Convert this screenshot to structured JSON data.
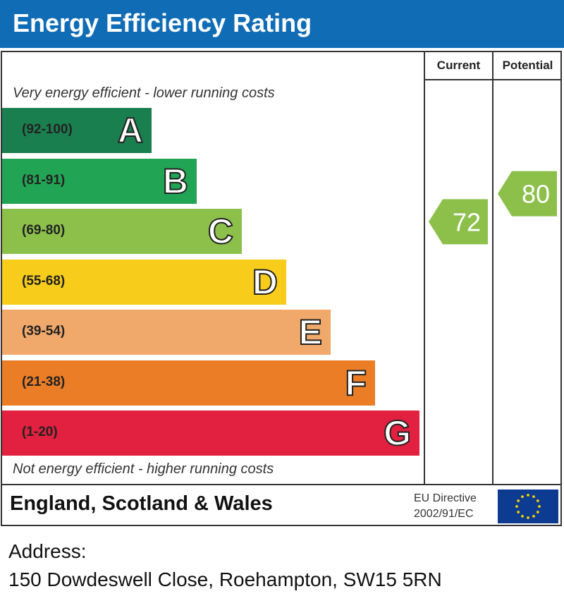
{
  "title": "Energy Efficiency Rating",
  "columns": {
    "current": "Current",
    "potential": "Potential"
  },
  "notes": {
    "top": "Very energy efficient - lower running costs",
    "bottom": "Not energy efficient - higher running costs"
  },
  "footer": {
    "region": "England, Scotland & Wales",
    "directive_line1": "EU Directive",
    "directive_line2": "2002/91/EC"
  },
  "address": {
    "label": "Address:",
    "value": "150 Dowdeswell Close, Roehampton, SW15 5RN"
  },
  "chart_data": {
    "type": "bar",
    "title": "Energy Efficiency Rating",
    "categories": [
      "A",
      "B",
      "C",
      "D",
      "E",
      "F",
      "G"
    ],
    "ranges": [
      "(92-100)",
      "(81-91)",
      "(69-80)",
      "(55-68)",
      "(39-54)",
      "(21-38)",
      "(1-20)"
    ],
    "colors": [
      "#1a7f4e",
      "#22a455",
      "#8cc04b",
      "#f7cc1a",
      "#f0a96a",
      "#eb7d27",
      "#e2203f"
    ],
    "current": {
      "value": 72,
      "band": "C",
      "label": "72"
    },
    "potential": {
      "value": 80,
      "band": "C",
      "label": "80"
    },
    "indicator_color": "#8cc04b"
  }
}
